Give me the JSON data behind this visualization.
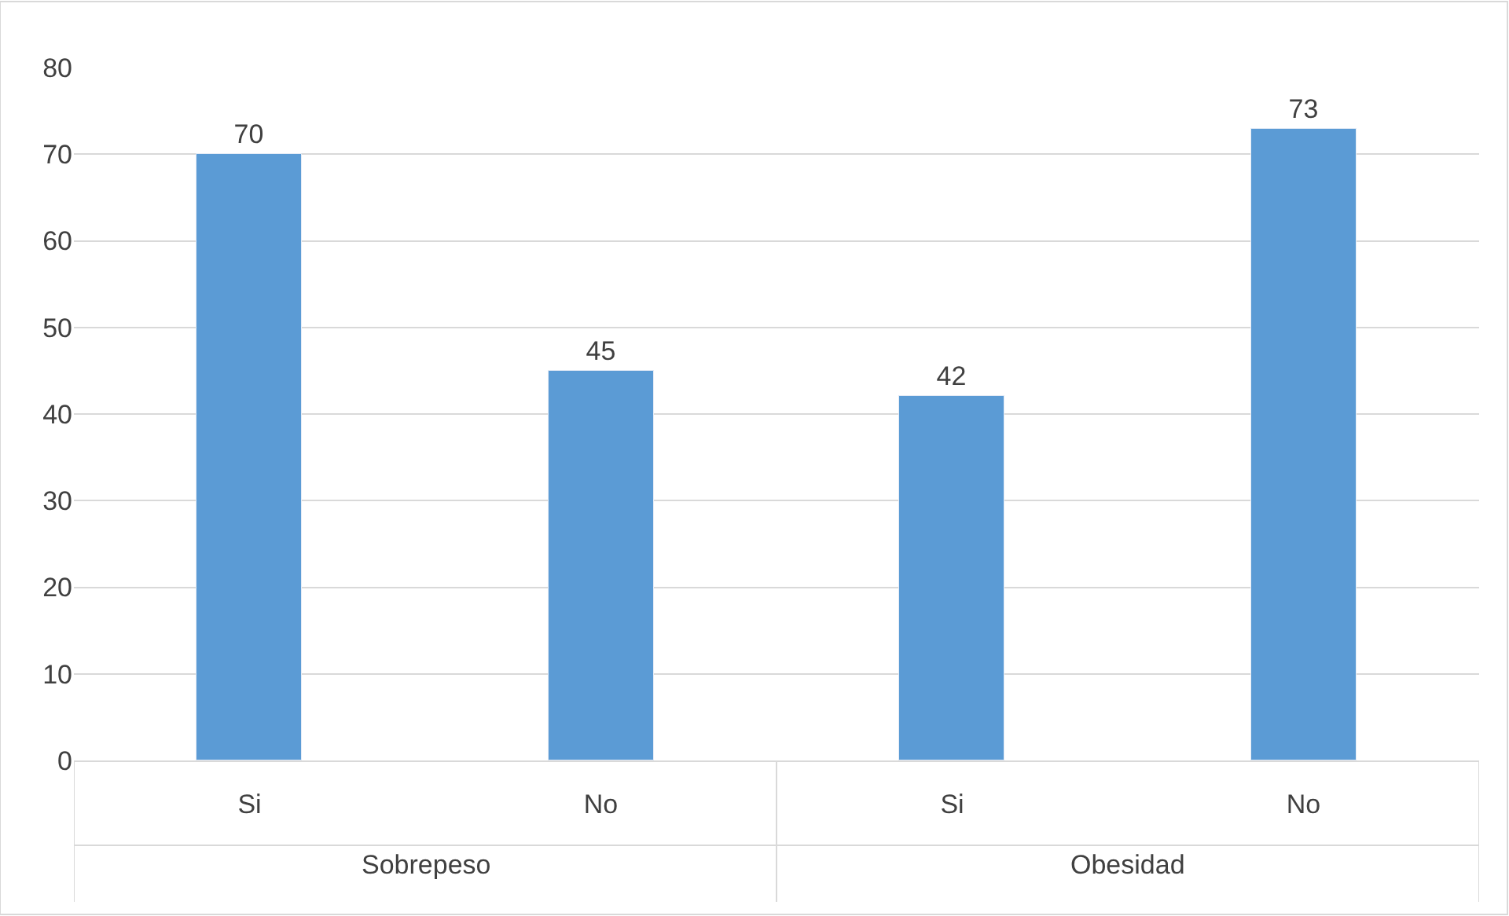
{
  "chart_data": {
    "type": "bar",
    "categories": [
      "Si",
      "No",
      "Si",
      "No"
    ],
    "values": [
      70,
      45,
      42,
      73
    ],
    "color": "#5b9bd5",
    "ylim": [
      0,
      80
    ],
    "yticks": [
      0,
      10,
      20,
      30,
      40,
      50,
      60,
      70,
      80
    ],
    "grid": "y",
    "data_labels": true,
    "legend": false,
    "annotations": [
      "Sobrepeso",
      "Obesidad"
    ]
  }
}
